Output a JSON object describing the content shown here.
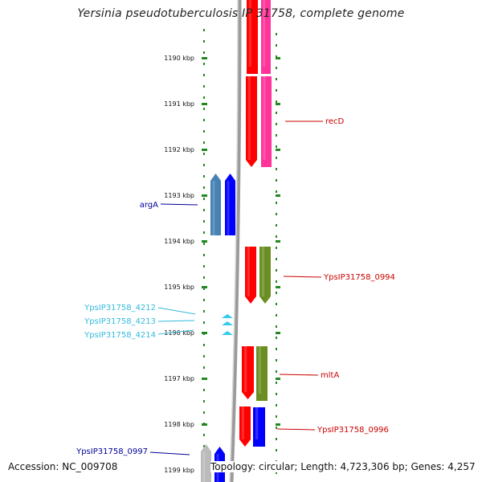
{
  "title": "Yersinia pseudotuberculosis IP 31758, complete genome",
  "footer": {
    "accession": "Accession: NC_009708",
    "info": "Topology: circular; Length: 4,723,306 bp; Genes: 4,257"
  },
  "colors": {
    "red": "#ff0000",
    "magenta": "#ff3399",
    "olive": "#6b8e23",
    "steelblue": "#4682b4",
    "blue": "#0000ff",
    "gray": "#bbbbbb",
    "cyan": "#33ccee",
    "track_dots": "#228822",
    "label_red": "#cc0000",
    "label_navy": "#000099",
    "label_cyan": "#33bbdd"
  },
  "ruler": {
    "ticks": [
      "1190 kbp",
      "1191 kbp",
      "1192 kbp",
      "1193 kbp",
      "1194 kbp",
      "1195 kbp",
      "1196 kbp",
      "1197 kbp",
      "1198 kbp",
      "1199 kbp"
    ]
  },
  "gene_labels": [
    {
      "name": "recD",
      "color": "label_red"
    },
    {
      "name": "argA",
      "color": "label_navy"
    },
    {
      "name": "YpsIP31758_0994",
      "color": "label_red"
    },
    {
      "name": "YpsIP31758_4212",
      "color": "label_cyan"
    },
    {
      "name": "YpsIP31758_4213",
      "color": "label_cyan"
    },
    {
      "name": "YpsIP31758_4214",
      "color": "label_cyan"
    },
    {
      "name": "mltA",
      "color": "label_red"
    },
    {
      "name": "YpsIP31758_0996",
      "color": "label_red"
    },
    {
      "name": "YpsIP31758_0997",
      "color": "label_navy"
    }
  ]
}
